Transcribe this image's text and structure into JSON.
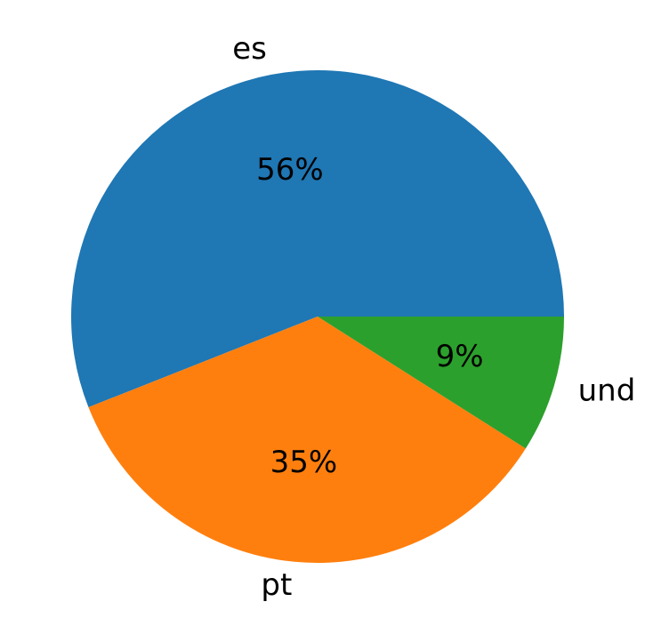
{
  "chart_data": {
    "type": "pie",
    "categories": [
      "es",
      "pt",
      "und"
    ],
    "values": [
      56,
      35,
      9
    ],
    "value_labels": [
      "56%",
      "35%",
      "9%"
    ],
    "colors": [
      "#1f77b4",
      "#ff7f0e",
      "#2ca02c"
    ]
  }
}
